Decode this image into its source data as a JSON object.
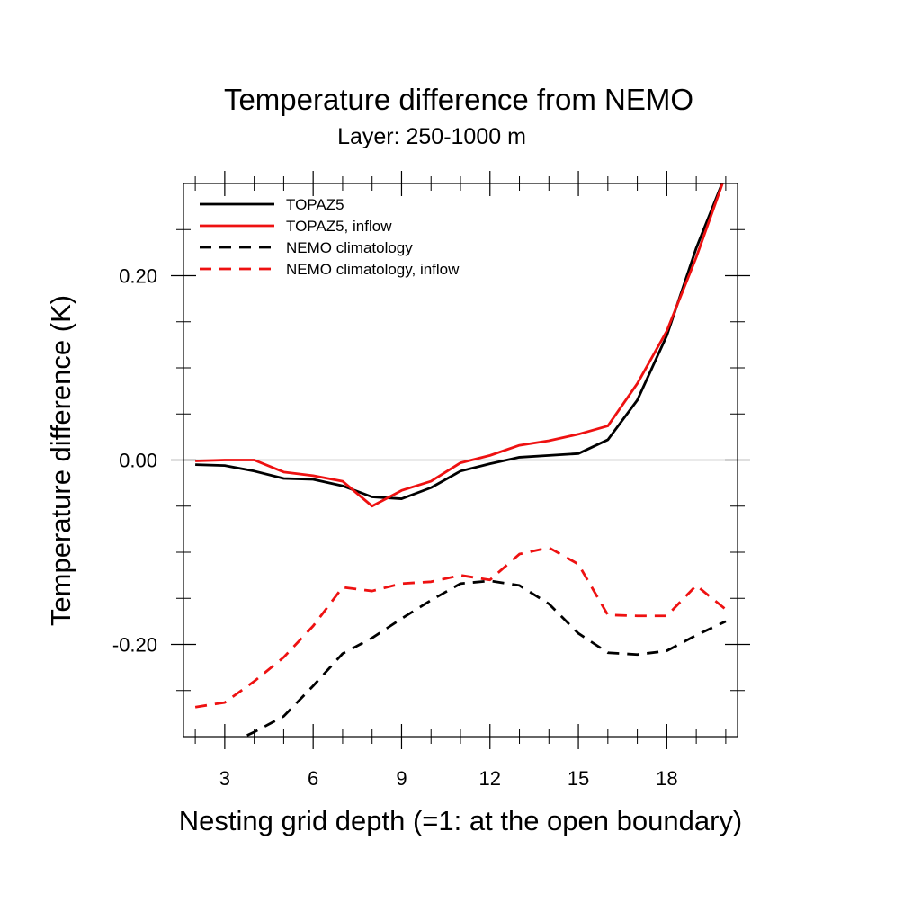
{
  "chart_data": {
    "type": "line",
    "title": "Temperature difference from NEMO",
    "subtitle": "Layer: 250-1000 m",
    "xlabel": "Nesting grid depth (=1: at the open boundary)",
    "ylabel": "Temperature difference (K)",
    "xlim": [
      1.6,
      20.4
    ],
    "ylim": [
      -0.3,
      0.3
    ],
    "x_ticks": [
      3,
      6,
      9,
      12,
      15,
      18
    ],
    "x_tick_labels": [
      "3",
      "6",
      "9",
      "12",
      "15",
      "18"
    ],
    "y_ticks": [
      -0.2,
      0.0,
      0.2
    ],
    "y_tick_labels": [
      "-0.20",
      "0.00",
      "0.20"
    ],
    "zero_line": true,
    "grid": false,
    "legend_position": "top-left",
    "x": [
      2,
      3,
      4,
      5,
      6,
      7,
      8,
      9,
      10,
      11,
      12,
      13,
      14,
      15,
      16,
      17,
      18,
      19,
      20
    ],
    "series": [
      {
        "name": "TOPAZ5",
        "color": "#000000",
        "dash": "solid",
        "values": [
          -0.005,
          -0.006,
          -0.012,
          -0.02,
          -0.021,
          -0.028,
          -0.04,
          -0.042,
          -0.03,
          -0.012,
          -0.004,
          0.003,
          0.005,
          0.007,
          0.022,
          0.065,
          0.135,
          0.23,
          0.31
        ]
      },
      {
        "name": "TOPAZ5, inflow",
        "color": "#ee1111",
        "dash": "solid",
        "values": [
          -0.001,
          0.0,
          0.0,
          -0.013,
          -0.017,
          -0.023,
          -0.05,
          -0.033,
          -0.023,
          -0.003,
          0.005,
          0.016,
          0.021,
          0.028,
          0.037,
          0.083,
          0.14,
          0.22,
          0.31
        ]
      },
      {
        "name": "NEMO climatology",
        "color": "#000000",
        "dash": "dashed",
        "values": [
          -0.33,
          -0.31,
          -0.295,
          -0.278,
          -0.245,
          -0.21,
          -0.193,
          -0.172,
          -0.152,
          -0.134,
          -0.131,
          -0.136,
          -0.156,
          -0.188,
          -0.209,
          -0.211,
          -0.207,
          -0.19,
          -0.175
        ]
      },
      {
        "name": "NEMO climatology, inflow",
        "color": "#ee1111",
        "dash": "dashed",
        "values": [
          -0.268,
          -0.263,
          -0.24,
          -0.214,
          -0.18,
          -0.138,
          -0.142,
          -0.134,
          -0.132,
          -0.125,
          -0.13,
          -0.102,
          -0.095,
          -0.113,
          -0.168,
          -0.169,
          -0.169,
          -0.136,
          -0.162
        ]
      }
    ]
  }
}
